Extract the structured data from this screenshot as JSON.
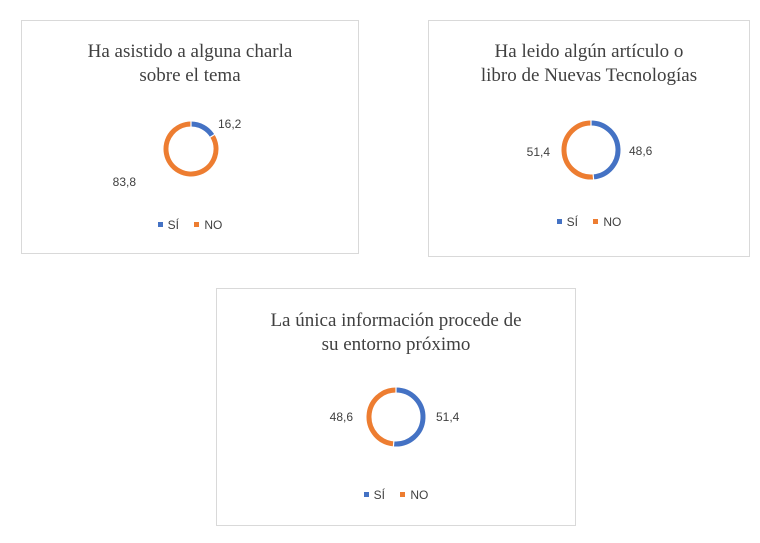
{
  "colors": {
    "si": "#4472c4",
    "no": "#ed7d31"
  },
  "chart_data": [
    {
      "type": "pie",
      "variant": "donut",
      "title": "Ha asistido a alguna charla\nsobre el tema",
      "categories": [
        "SÍ",
        "NO"
      ],
      "values": [
        16.2,
        83.8
      ],
      "labels": [
        "16,2",
        "83,8"
      ],
      "legend": {
        "placement": "bottom",
        "entries": [
          "SÍ",
          "NO"
        ]
      }
    },
    {
      "type": "pie",
      "variant": "donut",
      "title": "Ha leido algún artículo o\nlibro de Nuevas Tecnologías",
      "categories": [
        "SÍ",
        "NO"
      ],
      "values": [
        48.6,
        51.4
      ],
      "labels": [
        "48,6",
        "51,4"
      ],
      "legend": {
        "placement": "bottom",
        "entries": [
          "SÍ",
          "NO"
        ]
      }
    },
    {
      "type": "pie",
      "variant": "donut",
      "title": "La única información procede de\nsu entorno próximo",
      "categories": [
        "SÍ",
        "NO"
      ],
      "values": [
        51.4,
        48.6
      ],
      "labels": [
        "51,4",
        "48,6"
      ],
      "legend": {
        "placement": "bottom",
        "entries": [
          "SÍ",
          "NO"
        ]
      }
    }
  ]
}
